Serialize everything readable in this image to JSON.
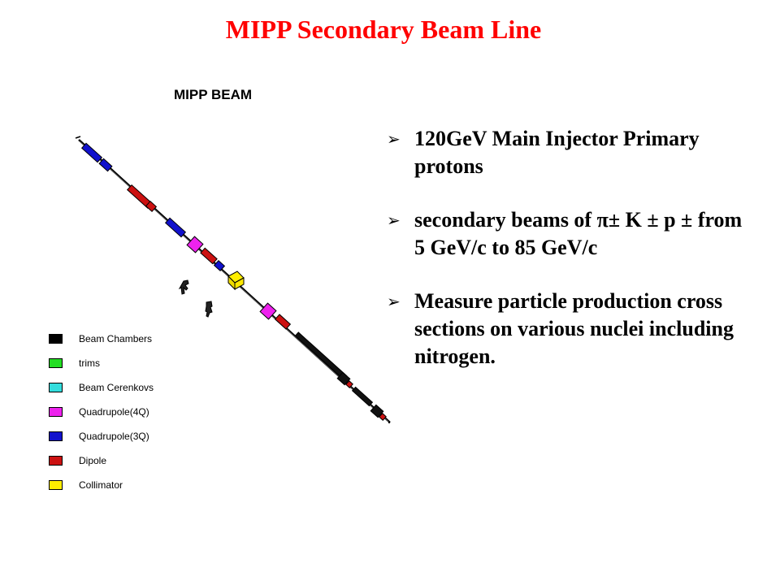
{
  "slide": {
    "title": "MIPP Secondary Beam Line"
  },
  "diagram": {
    "title": "MIPP BEAM",
    "legend": [
      {
        "label": "Beam Chambers",
        "color": "#000000"
      },
      {
        "label": "trims",
        "color": "#22dd22"
      },
      {
        "label": "Beam Cerenkovs",
        "color": "#33dddd"
      },
      {
        "label": "Quadrupole(4Q)",
        "color": "#ee22ee"
      },
      {
        "label": "Quadrupole(3Q)",
        "color": "#1111cc"
      },
      {
        "label": "Dipole",
        "color": "#cc1111"
      },
      {
        "label": "Collimator",
        "color": "#ffee00"
      }
    ]
  },
  "bullets": [
    {
      "marker": "➢",
      "text": "120GeV Main Injector Primary protons"
    },
    {
      "marker": "➢",
      "text": "secondary beams of π± K ± p ± from 5 GeV/c to 85 GeV/c"
    },
    {
      "marker": "➢",
      "text": "Measure particle production cross sections on various nuclei including nitrogen."
    }
  ]
}
